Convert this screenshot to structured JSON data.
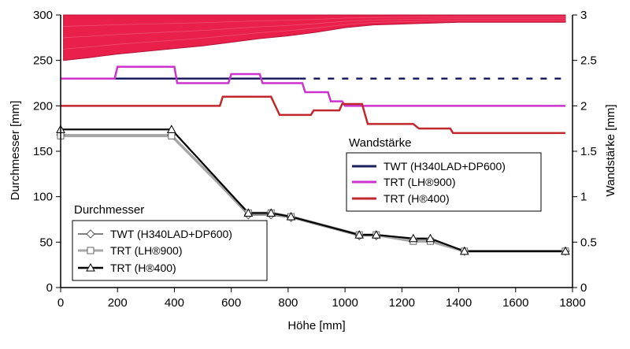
{
  "chart_data": {
    "type": "line",
    "xlabel": "Höhe [mm]",
    "ylabel": "Durchmesser [mm]",
    "y2label": "Wandstärke [mm]",
    "xlim": [
      0,
      1800
    ],
    "ylim": [
      0,
      300
    ],
    "y2lim": [
      0,
      3
    ],
    "x_ticks": [
      "0",
      "200",
      "400",
      "600",
      "800",
      "1000",
      "1200",
      "1400",
      "1600",
      "1800"
    ],
    "y_ticks": [
      "0",
      "50",
      "100",
      "150",
      "200",
      "250",
      "300"
    ],
    "y2_ticks": [
      "0",
      "0.5",
      "1",
      "1.5",
      "2",
      "2.5",
      "3"
    ],
    "legend_durchmesser": {
      "title": "Durchmesser",
      "entries": [
        "TWT (H340LAD+DP600)",
        "TRT (LH®900)",
        "TRT (H®400)"
      ]
    },
    "legend_wandstaerke": {
      "title": "Wandstärke",
      "entries": [
        "TWT (H340LAD+DP600)",
        "TRT (LH®900)",
        "TRT (H®400)"
      ]
    },
    "durchmesser_series": [
      {
        "name": "TWT (H340LAD+DP600)",
        "axis": "y",
        "color": "#808080",
        "marker": "diamond",
        "x": [
          0,
          390,
          660,
          740,
          810,
          1050,
          1110,
          1240,
          1300,
          1420,
          1775
        ],
        "y": [
          168,
          168,
          80,
          80,
          77,
          57,
          57,
          52,
          52,
          40,
          40
        ]
      },
      {
        "name": "TRT (LH®900)",
        "axis": "y",
        "color": "#a6a6a6",
        "marker": "square",
        "x": [
          0,
          390,
          660,
          740,
          810,
          1050,
          1110,
          1240,
          1300,
          1420,
          1775
        ],
        "y": [
          167,
          167,
          82,
          82,
          78,
          58,
          58,
          51,
          51,
          40,
          40
        ]
      },
      {
        "name": "TRT (H®400)",
        "axis": "y",
        "color": "#000000",
        "marker": "triangle",
        "x": [
          0,
          390,
          660,
          740,
          810,
          1050,
          1110,
          1240,
          1300,
          1420,
          1775
        ],
        "y": [
          174,
          174,
          82,
          82,
          78,
          58,
          58,
          54,
          54,
          40,
          40
        ]
      }
    ],
    "wandstaerke_series": [
      {
        "name": "TWT (H340LAD+DP600)",
        "axis": "y2",
        "color": "#1a1f5e",
        "solid": {
          "x": [
            0,
            840
          ],
          "y": [
            2.3,
            2.3
          ]
        },
        "dashed": {
          "x": [
            840,
            1775
          ],
          "y": [
            2.3,
            2.3
          ]
        }
      },
      {
        "name": "TRT (LH®900)",
        "axis": "y2",
        "color": "#cc33cc",
        "x": [
          0,
          190,
          200,
          400,
          410,
          590,
          600,
          700,
          710,
          850,
          860,
          940,
          950,
          990,
          1000,
          1775
        ],
        "y": [
          2.3,
          2.3,
          2.43,
          2.43,
          2.25,
          2.25,
          2.35,
          2.35,
          2.25,
          2.25,
          2.15,
          2.15,
          2.05,
          2.05,
          2.0,
          2.0
        ]
      },
      {
        "name": "TRT (H®400)",
        "axis": "y2",
        "color": "#c0282d",
        "x": [
          0,
          560,
          570,
          740,
          770,
          880,
          890,
          980,
          990,
          1060,
          1080,
          1240,
          1260,
          1370,
          1380,
          1775
        ],
        "y": [
          2.0,
          2.0,
          2.1,
          2.1,
          1.9,
          1.9,
          1.95,
          1.95,
          2.02,
          2.02,
          1.8,
          1.8,
          1.75,
          1.75,
          1.7,
          1.7
        ]
      }
    ],
    "profile_band": {
      "color": "#e8204a",
      "x": [
        10,
        100,
        200,
        300,
        400,
        500,
        600,
        700,
        800,
        900,
        1000,
        1100,
        1200,
        1300,
        1400,
        1500,
        1600,
        1700,
        1775
      ],
      "upper": [
        300,
        300,
        300,
        300,
        300,
        300,
        300,
        300,
        300,
        300,
        300,
        300,
        300,
        300,
        300,
        300,
        300,
        300,
        300
      ],
      "lower": [
        250,
        253,
        257,
        260,
        263,
        266,
        270,
        274,
        277,
        281,
        286,
        289,
        290,
        291,
        292,
        292,
        292,
        292,
        292
      ]
    }
  }
}
